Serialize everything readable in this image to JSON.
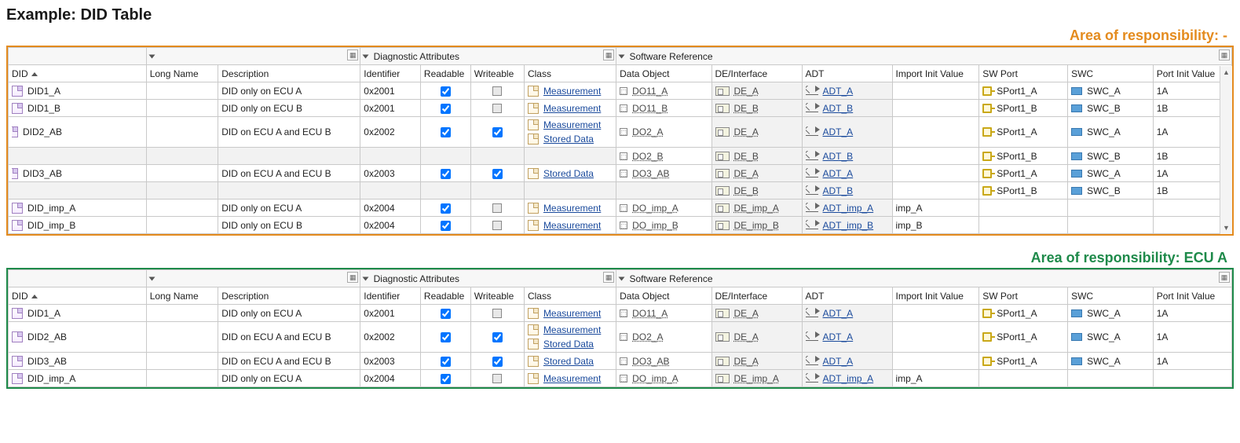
{
  "title": "Example: DID Table",
  "colors": {
    "orange": "#e48b1e",
    "green": "#1e8a4a",
    "border": "#c9c9c9",
    "shaded_cell": "#f2f2f2",
    "link": "#1a4a9c"
  },
  "panels": [
    {
      "id": "panel-all",
      "border_color": "orange",
      "area_label": "Area of responsibility: -",
      "area_label_color": "orange-text"
    },
    {
      "id": "panel-ecu-a",
      "border_color": "green",
      "area_label": "Area of responsibility: ECU A",
      "area_label_color": "green-text"
    }
  ],
  "column_groups": {
    "g1": "",
    "g2": "",
    "g3": "Diagnostic Attributes",
    "g4": "Software Reference"
  },
  "columns": {
    "did": "DID",
    "long_name": "Long Name",
    "description": "Description",
    "identifier": "Identifier",
    "readable": "Readable",
    "writeable": "Writeable",
    "class": "Class",
    "data_object": "Data Object",
    "de_interface": "DE/Interface",
    "adt": "ADT",
    "import_init": "Import Init Value",
    "sw_port": "SW Port",
    "swc": "SWC",
    "port_init": "Port Init Value"
  },
  "col_widths": {
    "did": 165,
    "long_name": 86,
    "description": 170,
    "identifier": 72,
    "readable": 60,
    "writeable": 64,
    "class": 110,
    "data_object": 114,
    "de_interface": 108,
    "adt": 108,
    "import_init": 104,
    "sw_port": 106,
    "swc": 102,
    "port_init": 94
  },
  "class_labels": {
    "measurement": "Measurement",
    "stored_data": "Stored Data"
  },
  "rows_all": [
    {
      "expander": null,
      "did": "DID1_A",
      "long_name": "",
      "desc": "DID only on ECU A",
      "ident": "0x2001",
      "readable": "checked",
      "writeable": "neutral",
      "class": [
        "measurement"
      ],
      "do": "DO11_A",
      "de": "DE_A",
      "adt": "ADT_A",
      "import": "",
      "swport": "SPort1_A",
      "swc": "SWC_A",
      "portinit": "1A",
      "shade": [
        "de",
        "adt"
      ]
    },
    {
      "expander": null,
      "did": "DID1_B",
      "long_name": "",
      "desc": "DID only on ECU B",
      "ident": "0x2001",
      "readable": "checked",
      "writeable": "neutral",
      "class": [
        "measurement"
      ],
      "do": "DO11_B",
      "de": "DE_B",
      "adt": "ADT_B",
      "import": "",
      "swport": "SPort1_B",
      "swc": "SWC_B",
      "portinit": "1B",
      "shade": [
        "de",
        "adt"
      ]
    },
    {
      "expander": "open",
      "did": "DID2_AB",
      "long_name": "",
      "desc": "DID on ECU A and ECU B",
      "ident": "0x2002",
      "readable": "checked",
      "writeable": "checked",
      "class": [
        "measurement",
        "stored_data"
      ],
      "do": "DO2_A",
      "de": "DE_A",
      "adt": "ADT_A",
      "import": "",
      "swport": "SPort1_A",
      "swc": "SWC_A",
      "portinit": "1A",
      "shade": [
        "de",
        "adt"
      ]
    },
    {
      "expander": "child",
      "did": "",
      "long_name": "",
      "desc": "",
      "ident": "",
      "readable": "",
      "writeable": "",
      "class": [],
      "do": "DO2_B",
      "de": "DE_B",
      "adt": "ADT_B",
      "import": "",
      "swport": "SPort1_B",
      "swc": "SWC_B",
      "portinit": "1B",
      "shade": [
        "did",
        "long_name",
        "desc",
        "ident",
        "readable",
        "writeable",
        "class",
        "de",
        "adt"
      ]
    },
    {
      "expander": "open",
      "did": "DID3_AB",
      "long_name": "",
      "desc": "DID on ECU A and ECU B",
      "ident": "0x2003",
      "readable": "checked",
      "writeable": "checked",
      "class": [
        "stored_data"
      ],
      "do": "DO3_AB",
      "de": "DE_A",
      "adt": "ADT_A",
      "import": "",
      "swport": "SPort1_A",
      "swc": "SWC_A",
      "portinit": "1A",
      "shade": [
        "de",
        "adt"
      ]
    },
    {
      "expander": "child",
      "did": "",
      "long_name": "",
      "desc": "",
      "ident": "",
      "readable": "",
      "writeable": "",
      "class": [],
      "do": "",
      "de": "DE_B",
      "adt": "ADT_B",
      "import": "",
      "swport": "SPort1_B",
      "swc": "SWC_B",
      "portinit": "1B",
      "shade": [
        "did",
        "long_name",
        "desc",
        "ident",
        "readable",
        "writeable",
        "class",
        "do",
        "de",
        "adt"
      ]
    },
    {
      "expander": null,
      "did": "DID_imp_A",
      "long_name": "",
      "desc": "DID only on ECU A",
      "ident": "0x2004",
      "readable": "checked",
      "writeable": "neutral",
      "class": [
        "measurement"
      ],
      "do": "DO_imp_A",
      "de": "DE_imp_A",
      "adt": "ADT_imp_A",
      "import": "imp_A",
      "swport": "",
      "swc": "",
      "portinit": "",
      "shade": [
        "de",
        "adt"
      ]
    },
    {
      "expander": null,
      "did": "DID_imp_B",
      "long_name": "",
      "desc": "DID only on ECU B",
      "ident": "0x2004",
      "readable": "checked",
      "writeable": "neutral",
      "class": [
        "measurement"
      ],
      "do": "DO_imp_B",
      "de": "DE_imp_B",
      "adt": "ADT_imp_B",
      "import": "imp_B",
      "swport": "",
      "swc": "",
      "portinit": "",
      "shade": [
        "de",
        "adt"
      ]
    }
  ],
  "rows_ecu_a": [
    {
      "expander": null,
      "did": "DID1_A",
      "long_name": "",
      "desc": "DID only on ECU A",
      "ident": "0x2001",
      "readable": "checked",
      "writeable": "neutral",
      "class": [
        "measurement"
      ],
      "do": "DO11_A",
      "de": "DE_A",
      "adt": "ADT_A",
      "import": "",
      "swport": "SPort1_A",
      "swc": "SWC_A",
      "portinit": "1A",
      "shade": [
        "de",
        "adt"
      ]
    },
    {
      "expander": null,
      "did": "DID2_AB",
      "long_name": "",
      "desc": "DID on ECU A and ECU B",
      "ident": "0x2002",
      "readable": "checked",
      "writeable": "checked",
      "class": [
        "measurement",
        "stored_data"
      ],
      "do": "DO2_A",
      "de": "DE_A",
      "adt": "ADT_A",
      "import": "",
      "swport": "SPort1_A",
      "swc": "SWC_A",
      "portinit": "1A",
      "shade": [
        "de",
        "adt"
      ]
    },
    {
      "expander": null,
      "did": "DID3_AB",
      "long_name": "",
      "desc": "DID on ECU A and ECU B",
      "ident": "0x2003",
      "readable": "checked",
      "writeable": "checked",
      "class": [
        "stored_data"
      ],
      "do": "DO3_AB",
      "de": "DE_A",
      "adt": "ADT_A",
      "import": "",
      "swport": "SPort1_A",
      "swc": "SWC_A",
      "portinit": "1A",
      "shade": [
        "de",
        "adt"
      ]
    },
    {
      "expander": null,
      "did": "DID_imp_A",
      "long_name": "",
      "desc": "DID only on ECU A",
      "ident": "0x2004",
      "readable": "checked",
      "writeable": "neutral",
      "class": [
        "measurement"
      ],
      "do": "DO_imp_A",
      "de": "DE_imp_A",
      "adt": "ADT_imp_A",
      "import": "imp_A",
      "swport": "",
      "swc": "",
      "portinit": "",
      "shade": [
        "de",
        "adt"
      ]
    }
  ]
}
